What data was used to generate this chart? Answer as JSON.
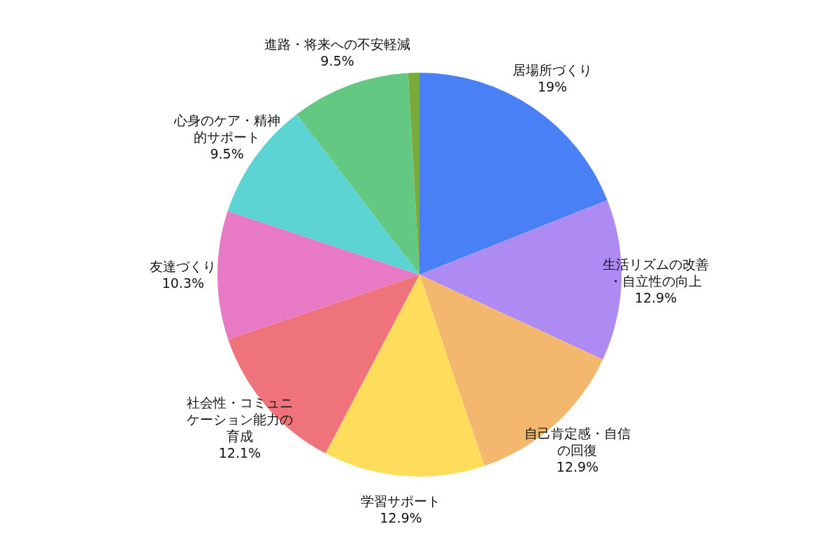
{
  "chart_data": {
    "type": "pie",
    "categories": [
      "居場所づくり",
      "生活リズムの改善・自立性の向上",
      "自己肯定感・自信の回復",
      "学習サポート",
      "社会性・コミュニケーション能力の育成",
      "友達づくり",
      "心身のケア・精神的サポート",
      "進路・将来への不安軽減",
      null
    ],
    "values": [
      19,
      12.9,
      12.9,
      12.9,
      12.1,
      10.3,
      9.5,
      9.5,
      0.9
    ],
    "value_labels": [
      "19%",
      "12.9%",
      "12.9%",
      "12.9%",
      "12.1%",
      "10.3%",
      "9.5%",
      "9.5%",
      null
    ],
    "colors": [
      "#4a80f6",
      "#ad8bf3",
      "#f3b86e",
      "#ffdd5c",
      "#ef737b",
      "#e879c4",
      "#5dd4d4",
      "#62c882",
      "#7aab3a"
    ]
  }
}
